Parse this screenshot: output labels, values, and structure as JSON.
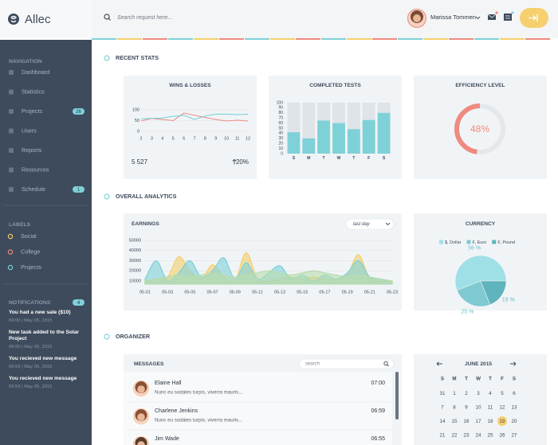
{
  "header": {
    "logo": "Allec",
    "search_placeholder": "Search request here...",
    "user_name": "Marissa Tommen"
  },
  "sidebar": {
    "navigation": {
      "title": "NAVIGATION",
      "items": [
        {
          "label": "Dashboard"
        },
        {
          "label": "Statistics"
        },
        {
          "label": "Projects",
          "badge": 26
        },
        {
          "label": "Users"
        },
        {
          "label": "Reports"
        },
        {
          "label": "Resources"
        },
        {
          "label": "Schedule",
          "badge": 1
        }
      ]
    },
    "labels": {
      "title": "LABELS",
      "items": [
        {
          "label": "Social",
          "color": "#f4cf6b"
        },
        {
          "label": "College",
          "color": "#ef8a80"
        },
        {
          "label": "Projects",
          "color": "#7fd1d8"
        }
      ]
    },
    "notifications": {
      "title": "NOTIFICATIONS",
      "count": 4,
      "items": [
        {
          "text": "You had a new sale ($10)",
          "meta": "09:00 | May 05, 2015"
        },
        {
          "text": "New task added to the Solar Project",
          "meta": "08:00 | May 05, 2015"
        },
        {
          "text": "You recieved new message",
          "meta": "06:59 | May 05, 2015"
        },
        {
          "text": "You recieved new message",
          "meta": "06:59 | May 05, 2015"
        }
      ]
    }
  },
  "sections": {
    "recent_stats": "RECENT STATS",
    "overall_analytics": "OVERALL ANALYTICS",
    "organizer": "ORGANIZER"
  },
  "wins_losses": {
    "title": "WINS & LOSSES",
    "x": [
      2,
      3,
      4,
      5,
      6,
      7,
      8,
      9,
      10,
      11,
      12
    ],
    "xlim": [
      2,
      12
    ],
    "ylim": [
      0,
      100
    ],
    "yticks": [
      0,
      50,
      100
    ],
    "series": [
      {
        "color": "#ef8a80",
        "values": [
          48,
          60,
          55,
          50,
          85,
          75,
          65,
          55,
          48,
          52,
          48
        ]
      },
      {
        "color": "#6fcfd9",
        "values": [
          58,
          60,
          62,
          70,
          75,
          55,
          72,
          80,
          80,
          78,
          80
        ]
      }
    ],
    "total": "5 527",
    "change": "20%"
  },
  "completed_tests": {
    "title": "COMPLETED TESTS",
    "categories": [
      "S",
      "M",
      "T",
      "W",
      "T",
      "F",
      "S"
    ],
    "values": [
      42,
      30,
      65,
      60,
      48,
      66,
      80
    ],
    "color": "#7fd1d8",
    "ylim": [
      0,
      100
    ],
    "yticks": [
      0,
      10,
      20,
      30,
      40,
      50,
      60,
      70,
      80,
      90,
      100
    ]
  },
  "efficiency": {
    "title": "EFFICIENCY LEVEL",
    "value": 48,
    "value_label": "48%",
    "color": "#ef8a80"
  },
  "earnings": {
    "title": "EARNINGS",
    "filter": "last day",
    "categories": [
      "05-01",
      null,
      "05-03",
      null,
      "05-05",
      null,
      "05-07",
      null,
      "05-09",
      null,
      "05-11",
      null,
      "05-13",
      null,
      "05-15",
      null,
      "05-17",
      null,
      "05-19",
      null,
      "05-21",
      null,
      "05-23"
    ],
    "ylim": [
      7000,
      52000
    ],
    "yticks": [
      10000,
      20000,
      30000,
      40000,
      50000
    ],
    "series": [
      {
        "color": "#f4cf6b",
        "values": [
          8000,
          12000,
          14000,
          34000,
          20000,
          12000,
          26000,
          14000,
          10000,
          38000,
          12000,
          10000,
          12000,
          14000,
          12000,
          14000,
          12000,
          12000,
          16000,
          36000,
          12000,
          10000,
          10000
        ]
      },
      {
        "color": "#7fd1d8",
        "values": [
          12000,
          30000,
          10000,
          18000,
          30000,
          14000,
          20000,
          33000,
          12000,
          28000,
          12000,
          18000,
          25000,
          12000,
          16000,
          10000,
          16000,
          12000,
          18000,
          30000,
          14000,
          12000,
          8000
        ]
      },
      {
        "color": "#b9dcae",
        "values": [
          10000,
          12000,
          14000,
          16000,
          14000,
          16000,
          18000,
          16000,
          14000,
          16000,
          18000,
          20000,
          18000,
          16000,
          18000,
          20000,
          18000,
          16000,
          14000,
          16000,
          14000,
          12000,
          10000
        ]
      }
    ]
  },
  "currency": {
    "title": "CURRENCY",
    "series": [
      {
        "name": "$, Dollar",
        "value": 56,
        "value_label": "56 %",
        "color": "#9ee0e6"
      },
      {
        "name": "€, Euro",
        "value": 25,
        "value_label": "25 %",
        "color": "#7fc9d1"
      },
      {
        "name": "€, Pound",
        "value": 19,
        "value_label": "19 %",
        "color": "#5fb3bd"
      }
    ]
  },
  "messages": {
    "title": "MESSAGES",
    "search_placeholder": "search",
    "items": [
      {
        "name": "Elaine Hall",
        "text": "Nunc eu sodales turpis, viverra mauris...",
        "time": "07:00"
      },
      {
        "name": "Charlene Jenkins",
        "text": "Nunc eu sodales turpis, viverra mauris...",
        "time": "06:59"
      },
      {
        "name": "Jim Wade",
        "text": "Nunc eu sodales turpis, viverra mauris...",
        "time": "06:55"
      }
    ]
  },
  "calendar": {
    "month": "JUNE 2015",
    "weekdays": [
      "S",
      "M",
      "T",
      "W",
      "T",
      "F",
      "S"
    ],
    "weeks": [
      [
        31,
        1,
        2,
        3,
        4,
        5,
        6
      ],
      [
        7,
        8,
        9,
        10,
        11,
        12,
        13
      ],
      [
        14,
        15,
        16,
        17,
        18,
        19,
        20
      ],
      [
        21,
        22,
        23,
        24,
        25,
        26,
        27
      ]
    ],
    "today": 19
  }
}
